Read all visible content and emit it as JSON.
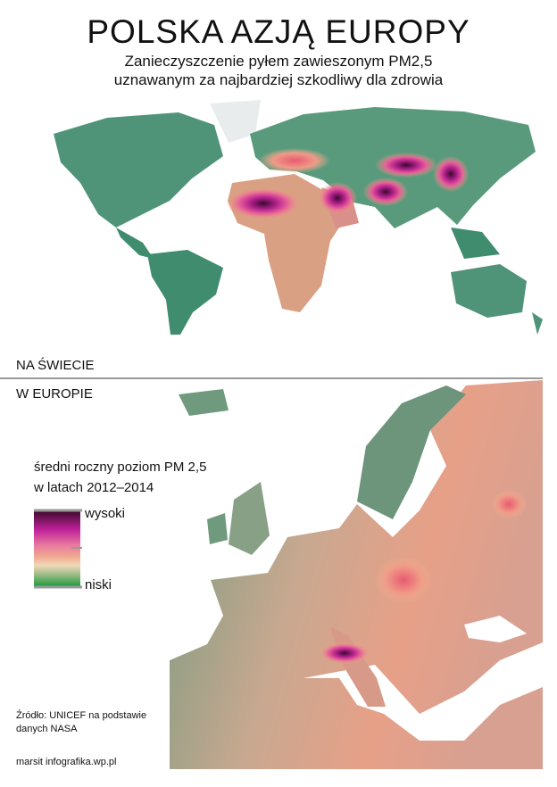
{
  "header": {
    "title": "POLSKA AZJĄ EUROPY",
    "subtitle": [
      "Zanieczyszczenie pyłem zawieszonym PM2,5",
      "uznawanym za najbardziej szkodliwy dla zdrowia"
    ]
  },
  "sections": {
    "world": "NA ŚWIECIE",
    "europe": "W EUROPIE"
  },
  "legend": {
    "title": [
      "średni roczny poziom PM 2,5",
      "w latach 2012–2014"
    ],
    "high": "wysoki",
    "low": "niski"
  },
  "source": [
    "Źródło: UNICEF na podstawie",
    "danych NASA"
  ],
  "credit": "marsit infografika.wp.pl"
}
